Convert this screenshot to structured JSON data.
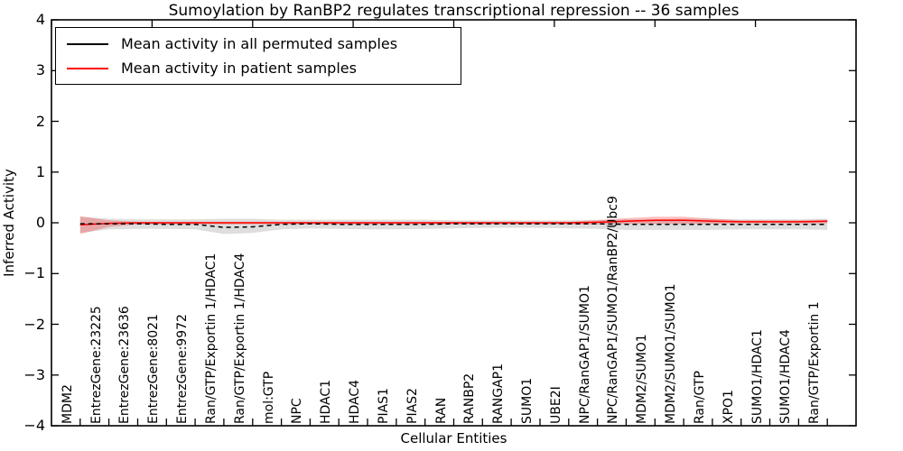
{
  "chart_data": {
    "type": "line",
    "title": "Sumoylation by RanBP2 regulates transcriptional repression -- 36 samples",
    "xlabel": "Cellular Entities",
    "ylabel": "Inferred Activity",
    "ylim": [
      -4,
      4
    ],
    "yticks": [
      4,
      3,
      2,
      1,
      0,
      -1,
      -2,
      -3,
      -4
    ],
    "ytick_labels": [
      "4",
      "3",
      "2",
      "1",
      "0",
      "−1",
      "−2",
      "−3",
      "−4"
    ],
    "grid": false,
    "legend_position": "upper left",
    "categories": [
      "MDM2",
      "EntrezGene:23225",
      "EntrezGene:23636",
      "EntrezGene:8021",
      "EntrezGene:9972",
      "Ran/GTP/Exportin 1/HDAC1",
      "Ran/GTP/Exportin 1/HDAC4",
      "mol:GTP",
      "NPC",
      "HDAC1",
      "HDAC4",
      "PIAS1",
      "PIAS2",
      "RAN",
      "RANBP2",
      "RANGAP1",
      "SUMO1",
      "UBE2I",
      "NPC/RanGAP1/SUMO1",
      "NPC/RanGAP1/SUMO1/RanBP2/Ubc9",
      "MDM2/SUMO1",
      "MDM2/SUMO1/SUMO1",
      "Ran/GTP",
      "XPO1",
      "SUMO1/HDAC1",
      "SUMO1/HDAC4",
      "Ran/GTP/Exportin 1"
    ],
    "series": [
      {
        "name": "Mean activity in all permuted samples",
        "color": "#000000",
        "style": "dashed",
        "values": [
          -0.02,
          -0.02,
          -0.02,
          -0.03,
          -0.03,
          -0.09,
          -0.08,
          -0.03,
          -0.02,
          -0.03,
          -0.03,
          -0.03,
          -0.03,
          -0.02,
          -0.02,
          -0.02,
          -0.02,
          -0.02,
          -0.02,
          -0.03,
          -0.03,
          -0.03,
          -0.03,
          -0.03,
          -0.03,
          -0.03,
          -0.03
        ],
        "band_upper": [
          0.12,
          0.08,
          0.07,
          0.07,
          0.07,
          0.08,
          0.08,
          0.06,
          0.06,
          0.06,
          0.06,
          0.06,
          0.06,
          0.05,
          0.05,
          0.05,
          0.05,
          0.05,
          0.06,
          0.07,
          0.07,
          0.08,
          0.08,
          0.07,
          0.07,
          0.07,
          0.08
        ],
        "band_lower": [
          -0.2,
          -0.13,
          -0.12,
          -0.12,
          -0.13,
          -0.22,
          -0.2,
          -0.13,
          -0.11,
          -0.12,
          -0.13,
          -0.13,
          -0.12,
          -0.11,
          -0.1,
          -0.1,
          -0.1,
          -0.11,
          -0.12,
          -0.14,
          -0.14,
          -0.14,
          -0.14,
          -0.13,
          -0.13,
          -0.13,
          -0.14
        ],
        "band_color": "rgba(0,0,0,0.13)"
      },
      {
        "name": "Mean activity in patient samples",
        "color": "#ff0000",
        "style": "solid",
        "values": [
          -0.04,
          -0.01,
          0,
          0,
          0,
          0,
          0,
          0,
          0,
          0,
          0,
          0,
          0,
          0,
          0,
          0,
          0,
          0,
          0.01,
          0.03,
          0.05,
          0.05,
          0.03,
          0.02,
          0.02,
          0.02,
          0.03
        ],
        "band_upper": [
          0.13,
          0.05,
          0.02,
          0.02,
          0.02,
          0.02,
          0.02,
          0.02,
          0.02,
          0.02,
          0.02,
          0.02,
          0.02,
          0.02,
          0.02,
          0.02,
          0.02,
          0.02,
          0.05,
          0.09,
          0.12,
          0.12,
          0.08,
          0.05,
          0.05,
          0.05,
          0.06
        ],
        "band_lower": [
          -0.22,
          -0.08,
          -0.03,
          -0.03,
          -0.03,
          -0.03,
          -0.03,
          -0.03,
          -0.03,
          -0.03,
          -0.03,
          -0.03,
          -0.03,
          -0.03,
          -0.03,
          -0.03,
          -0.03,
          -0.03,
          -0.03,
          -0.02,
          -0.02,
          -0.02,
          -0.02,
          -0.01,
          -0.01,
          -0.01,
          -0.01
        ],
        "band_color": "rgba(255,0,0,0.25)"
      }
    ]
  }
}
